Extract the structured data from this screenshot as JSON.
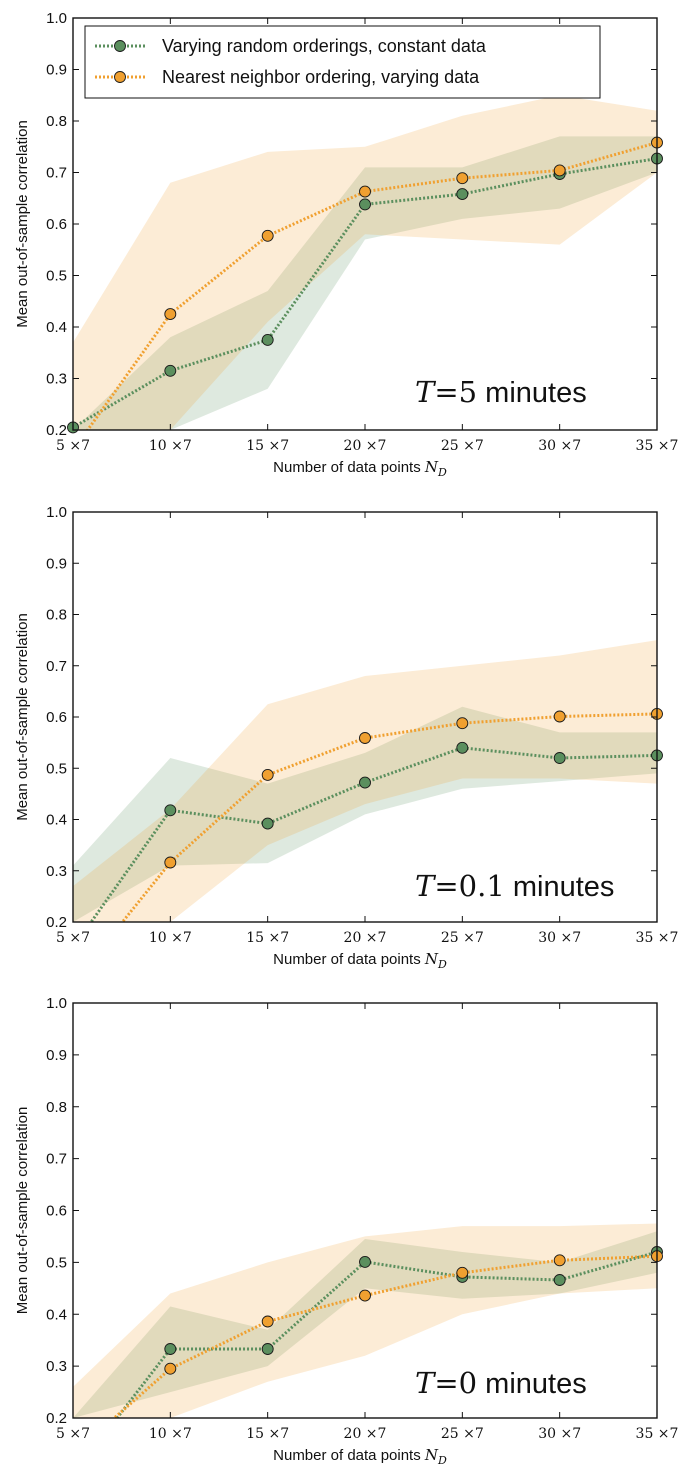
{
  "chart_data": [
    {
      "type": "line",
      "categories": [
        "5 ×7",
        "10 ×7",
        "15 ×7",
        "20 ×7",
        "25 ×7",
        "30 ×7",
        "35 ×7"
      ],
      "xlabel": "Number of data points",
      "xlabel_symbol": "N",
      "xlabel_subscript": "D",
      "ylabel": "Mean out-of-sample correlation",
      "ylim": [
        0.2,
        1.0
      ],
      "yticks": [
        "0.2",
        "0.3",
        "0.4",
        "0.5",
        "0.6",
        "0.7",
        "0.8",
        "0.9",
        "1.0"
      ],
      "annotation": {
        "symbol": "T",
        "equals": "=",
        "value": "5",
        "unit": "minutes"
      },
      "legend": {
        "location": "top-left"
      },
      "series": [
        {
          "name": "Varying random orderings, constant data",
          "color": "#5b8f5e",
          "values": [
            0.205,
            0.315,
            0.375,
            0.638,
            0.658,
            0.697,
            0.727
          ],
          "band_lower": [
            0.2,
            0.2,
            0.28,
            0.57,
            0.61,
            0.63,
            0.7
          ],
          "band_upper": [
            0.2,
            0.38,
            0.47,
            0.71,
            0.71,
            0.77,
            0.77
          ]
        },
        {
          "name": "Nearest neighbor ordering, varying data",
          "color": "#f0a030",
          "values": [
            0.16,
            0.425,
            0.577,
            0.663,
            0.689,
            0.704,
            0.758
          ],
          "band_lower": [
            0.2,
            0.2,
            0.41,
            0.58,
            0.57,
            0.56,
            0.7
          ],
          "band_upper": [
            0.37,
            0.68,
            0.74,
            0.75,
            0.81,
            0.85,
            0.82
          ]
        }
      ]
    },
    {
      "type": "line",
      "categories": [
        "5 ×7",
        "10 ×7",
        "15 ×7",
        "20 ×7",
        "25 ×7",
        "30 ×7",
        "35 ×7"
      ],
      "xlabel": "Number of data points",
      "xlabel_symbol": "N",
      "xlabel_subscript": "D",
      "ylabel": "Mean out-of-sample correlation",
      "ylim": [
        0.2,
        1.0
      ],
      "yticks": [
        "0.2",
        "0.3",
        "0.4",
        "0.5",
        "0.6",
        "0.7",
        "0.8",
        "0.9",
        "1.0"
      ],
      "annotation": {
        "symbol": "T",
        "equals": "=",
        "value": "0.1",
        "unit": "minutes"
      },
      "series": [
        {
          "name": "Varying random orderings, constant data",
          "color": "#5b8f5e",
          "values": [
            0.15,
            0.418,
            0.392,
            0.472,
            0.54,
            0.52,
            0.525
          ],
          "band_lower": [
            0.2,
            0.31,
            0.315,
            0.41,
            0.46,
            0.475,
            0.49
          ],
          "band_upper": [
            0.31,
            0.52,
            0.47,
            0.53,
            0.62,
            0.57,
            0.57
          ]
        },
        {
          "name": "Nearest neighbor ordering, varying data",
          "color": "#f0a030",
          "values": [
            0.08,
            0.316,
            0.487,
            0.559,
            0.588,
            0.601,
            0.606
          ],
          "band_lower": [
            0.2,
            0.2,
            0.35,
            0.43,
            0.48,
            0.48,
            0.47
          ],
          "band_upper": [
            0.27,
            0.42,
            0.625,
            0.68,
            0.7,
            0.72,
            0.75
          ]
        }
      ]
    },
    {
      "type": "line",
      "categories": [
        "5 ×7",
        "10 ×7",
        "15 ×7",
        "20 ×7",
        "25 ×7",
        "30 ×7",
        "35 ×7"
      ],
      "xlabel": "Number of data points",
      "xlabel_symbol": "N",
      "xlabel_subscript": "D",
      "ylabel": "Mean out-of-sample correlation",
      "ylim": [
        0.2,
        1.0
      ],
      "yticks": [
        "0.2",
        "0.3",
        "0.4",
        "0.5",
        "0.6",
        "0.7",
        "0.8",
        "0.9",
        "1.0"
      ],
      "annotation": {
        "symbol": "T",
        "equals": "=",
        "value": "0",
        "unit": "minutes"
      },
      "series": [
        {
          "name": "Varying random orderings, constant data",
          "color": "#5b8f5e",
          "values": [
            0.09,
            0.333,
            0.333,
            0.501,
            0.472,
            0.466,
            0.52
          ],
          "band_lower": [
            0.2,
            0.25,
            0.3,
            0.45,
            0.43,
            0.44,
            0.48
          ],
          "band_upper": [
            0.2,
            0.415,
            0.37,
            0.545,
            0.52,
            0.5,
            0.56
          ]
        },
        {
          "name": "Nearest neighbor ordering, varying data",
          "color": "#f0a030",
          "values": [
            0.13,
            0.295,
            0.386,
            0.436,
            0.48,
            0.504,
            0.512
          ],
          "band_lower": [
            0.2,
            0.2,
            0.27,
            0.32,
            0.4,
            0.44,
            0.45
          ],
          "band_upper": [
            0.26,
            0.44,
            0.5,
            0.55,
            0.57,
            0.57,
            0.575
          ]
        }
      ]
    }
  ]
}
